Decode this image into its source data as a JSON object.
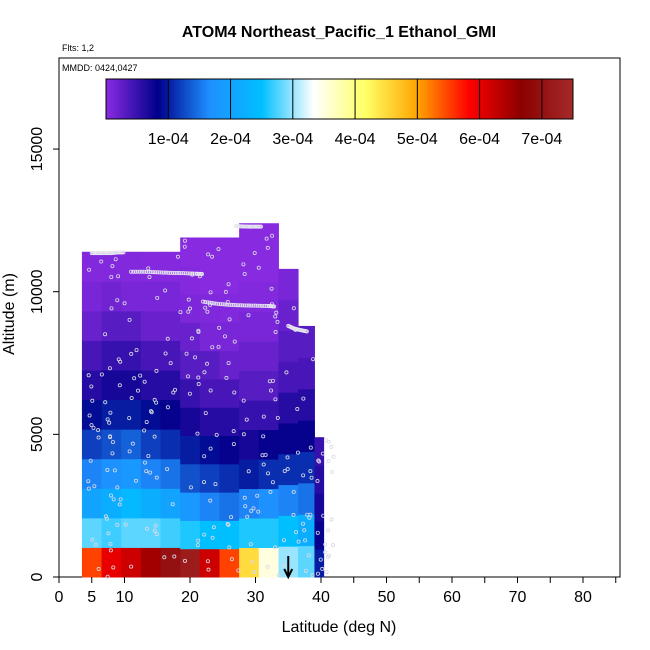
{
  "chart_data": {
    "type": "heatmap",
    "title": "ATOM4 Northeast_Pacific_1 Ethanol_GMI",
    "flights_note": "Flts: 1,2",
    "dates_note": "MMDD: 0424,0427",
    "xlabel": "Latitude (deg N)",
    "ylabel": "Altitude (m)",
    "xlim": [
      0,
      85
    ],
    "ylim": [
      0,
      18000
    ],
    "x_ticks": [
      0,
      5,
      10,
      20,
      30,
      40,
      50,
      60,
      70,
      80
    ],
    "y_ticks": [
      0,
      5000,
      10000,
      15000
    ],
    "colorbar": {
      "min": 0,
      "max": 0.00075,
      "tick_values": [
        0.0001,
        0.0002,
        0.0003,
        0.0004,
        0.0005,
        0.0006,
        0.0007
      ],
      "tick_labels": [
        "1e-04",
        "2e-04",
        "3e-04",
        "4e-04",
        "5e-04",
        "6e-04",
        "7e-04"
      ],
      "colors": [
        "#8a2be2",
        "#00008b",
        "#1e90ff",
        "#00bfff",
        "#ffffff",
        "#ffff66",
        "#ffa500",
        "#ff0000",
        "#8b0000",
        "#a52a2a"
      ]
    },
    "columns": [
      {
        "lat": 4,
        "top": 11400,
        "values": [
          0.00055,
          0.00028,
          0.0002,
          0.00016,
          0.00012,
          9e-05,
          6e-05,
          4e-05,
          2e-05,
          1e-05,
          5e-06
        ]
      },
      {
        "lat": 7,
        "top": 11400,
        "values": [
          0.0006,
          0.00027,
          0.00022,
          0.00017,
          0.00013,
          0.0001,
          7e-05,
          5e-05,
          3e-05,
          1.5e-05,
          5e-06
        ]
      },
      {
        "lat": 10,
        "top": 11400,
        "values": [
          0.00062,
          0.00028,
          0.00024,
          0.00018,
          0.00014,
          0.0001,
          7e-05,
          5e-05,
          3e-05,
          1e-05,
          5e-06
        ]
      },
      {
        "lat": 13,
        "top": 11400,
        "values": [
          0.00065,
          0.00028,
          0.00022,
          0.00016,
          0.00012,
          9e-05,
          6e-05,
          4e-05,
          2e-05,
          1e-05,
          3e-06
        ]
      },
      {
        "lat": 16,
        "top": 11400,
        "values": [
          0.0007,
          0.00027,
          0.0002,
          0.00015,
          0.00011,
          8e-05,
          6e-05,
          4e-05,
          2e-05,
          1e-05,
          3e-06
        ]
      },
      {
        "lat": 19,
        "top": 11900,
        "values": [
          0.00072,
          0.00026,
          0.00018,
          0.00013,
          0.0001,
          7e-05,
          5e-05,
          3e-05,
          2e-05,
          8e-06,
          3e-06,
          2e-06
        ]
      },
      {
        "lat": 22,
        "top": 11900,
        "values": [
          0.00062,
          0.00025,
          0.00016,
          0.00012,
          9e-05,
          6e-05,
          4e-05,
          3e-05,
          1e-05,
          6e-06,
          2e-06,
          2e-06
        ]
      },
      {
        "lat": 25,
        "top": 11900,
        "values": [
          0.00055,
          0.00025,
          0.00015,
          0.00011,
          8e-05,
          6e-05,
          4e-05,
          2e-05,
          1e-05,
          5e-06,
          2e-06,
          2e-06
        ]
      },
      {
        "lat": 28,
        "top": 12400,
        "values": [
          0.00045,
          0.00026,
          0.00016,
          0.0001,
          7e-05,
          5e-05,
          3e-05,
          2e-05,
          1e-05,
          5e-06,
          2e-06,
          2e-06
        ]
      },
      {
        "lat": 31,
        "top": 12400,
        "values": [
          0.00035,
          0.00026,
          0.00017,
          0.00011,
          8e-05,
          5e-05,
          3e-05,
          2e-05,
          1e-05,
          5e-06,
          2e-06,
          2e-06
        ]
      },
      {
        "lat": 34,
        "top": 10800,
        "values": [
          0.0003,
          0.00025,
          0.00016,
          0.00011,
          8e-05,
          6e-05,
          4e-05,
          3e-05,
          2e-05,
          1e-05
        ]
      },
      {
        "lat": 37,
        "top": 8800,
        "values": [
          0.00028,
          0.00022,
          0.00015,
          0.00011,
          8e-05,
          6e-05,
          4e-05,
          3e-05
        ]
      },
      {
        "lat": 39.5,
        "top": 4900,
        "values": [
          0.0001,
          8e-05,
          7e-05,
          6e-05,
          5e-05
        ]
      }
    ],
    "flight_tracks": [
      {
        "x": [
          5,
          6,
          7,
          8,
          9,
          10
        ],
        "y": [
          11350,
          11350,
          11350,
          11350,
          11380,
          11380
        ]
      },
      {
        "x": [
          11,
          13,
          15,
          17,
          19,
          21,
          22
        ],
        "y": [
          10700,
          10700,
          10680,
          10660,
          10650,
          10630,
          10620
        ]
      },
      {
        "x": [
          22,
          24,
          26,
          28,
          30,
          32,
          33
        ],
        "y": [
          9650,
          9580,
          9540,
          9520,
          9510,
          9500,
          9480
        ]
      },
      {
        "x": [
          27,
          28,
          29,
          30,
          31
        ],
        "y": [
          12300,
          12290,
          12280,
          12280,
          12280
        ]
      },
      {
        "x": [
          35,
          36,
          37,
          38
        ],
        "y": [
          8800,
          8700,
          8650,
          8600
        ]
      }
    ],
    "arrow_lat": 35
  }
}
